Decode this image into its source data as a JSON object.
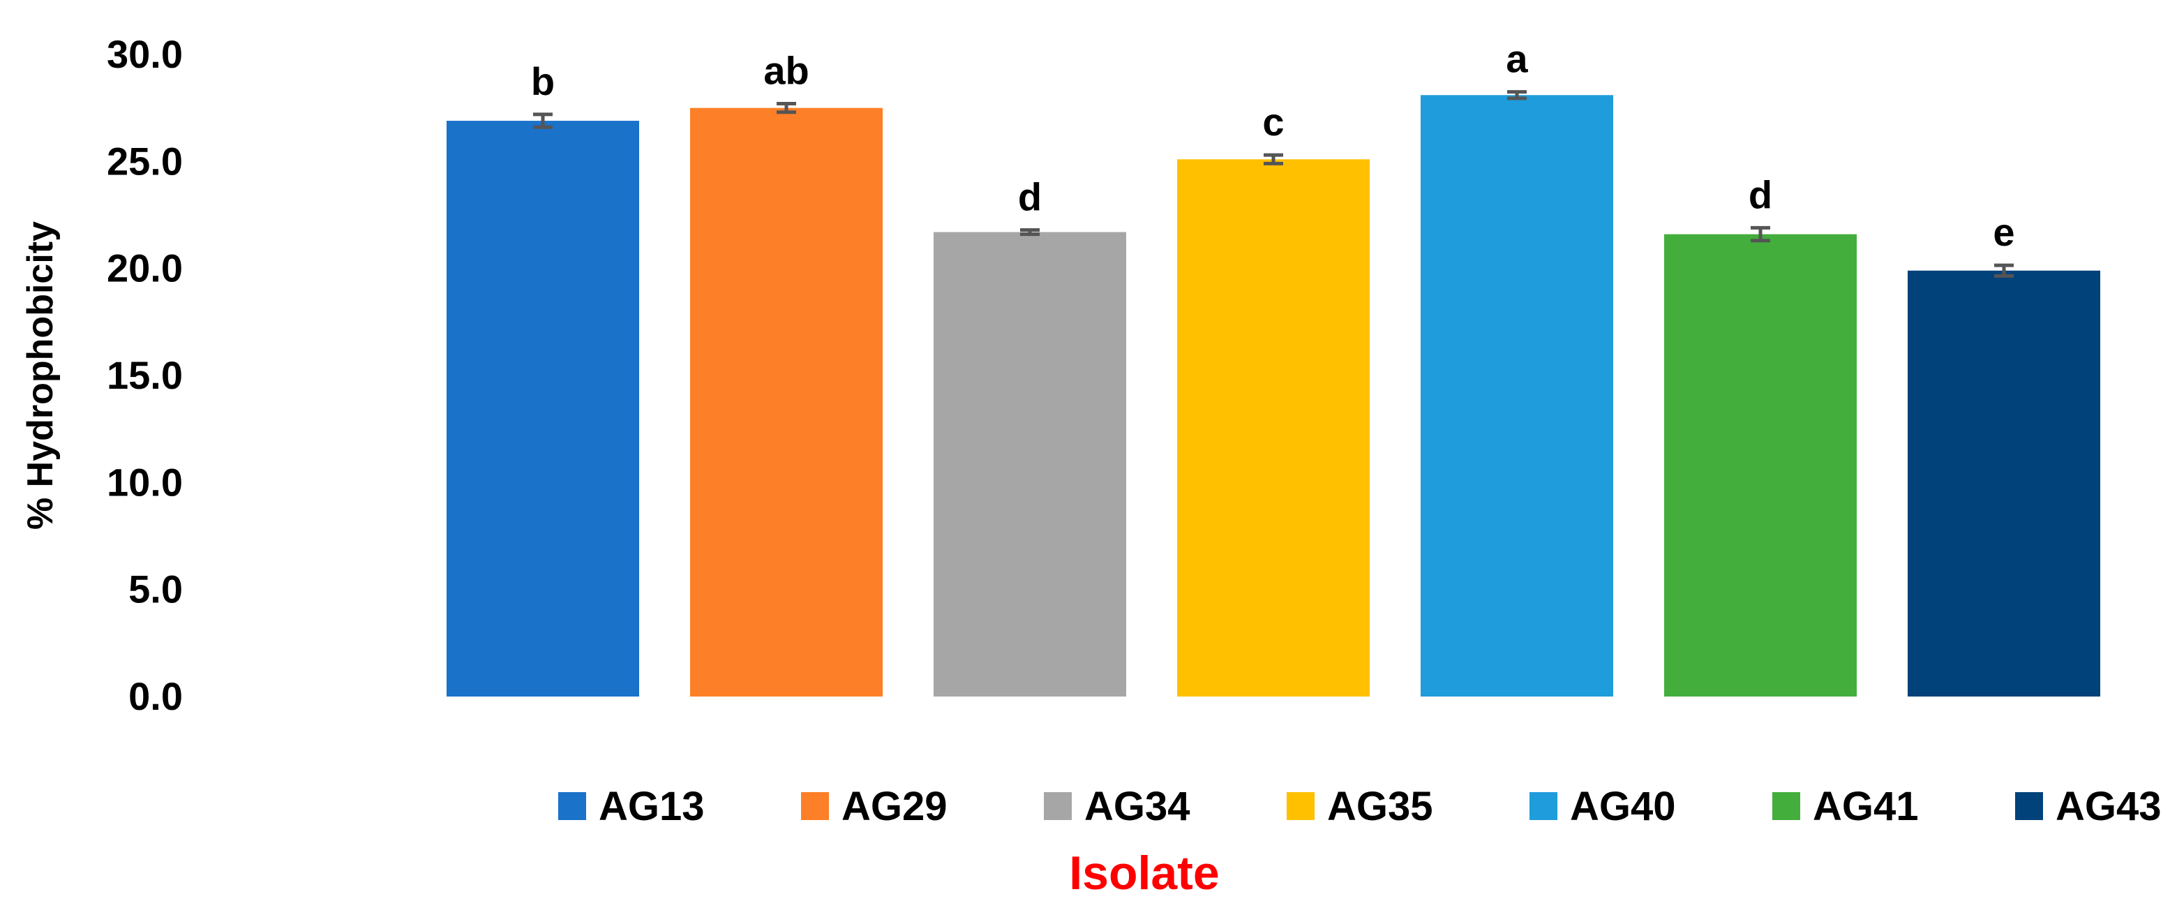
{
  "chart_data": {
    "type": "bar",
    "title": "",
    "xlabel": "Isolate",
    "ylabel": "% Hydrophobicity",
    "ylim": [
      0,
      30
    ],
    "yticks": [
      "0.0",
      "5.0",
      "10.0",
      "15.0",
      "20.0",
      "25.0",
      "30.0"
    ],
    "grid": false,
    "legend_position": "bottom",
    "categories": [
      "AG13",
      "AG29",
      "AG34",
      "AG35",
      "AG40",
      "AG41",
      "AG43"
    ],
    "values": [
      26.9,
      27.5,
      21.7,
      25.1,
      28.1,
      21.6,
      19.9
    ],
    "errors": [
      0.3,
      0.2,
      0.1,
      0.2,
      0.15,
      0.3,
      0.25
    ],
    "significance_letters": [
      "b",
      "ab",
      "d",
      "c",
      "a",
      "d",
      "e"
    ],
    "colors": [
      "#1a72c9",
      "#fd7f27",
      "#a6a6a6",
      "#ffc000",
      "#1f9cdb",
      "#43ae3c",
      "#02427a"
    ],
    "xlabel_color": "#ff0000"
  }
}
